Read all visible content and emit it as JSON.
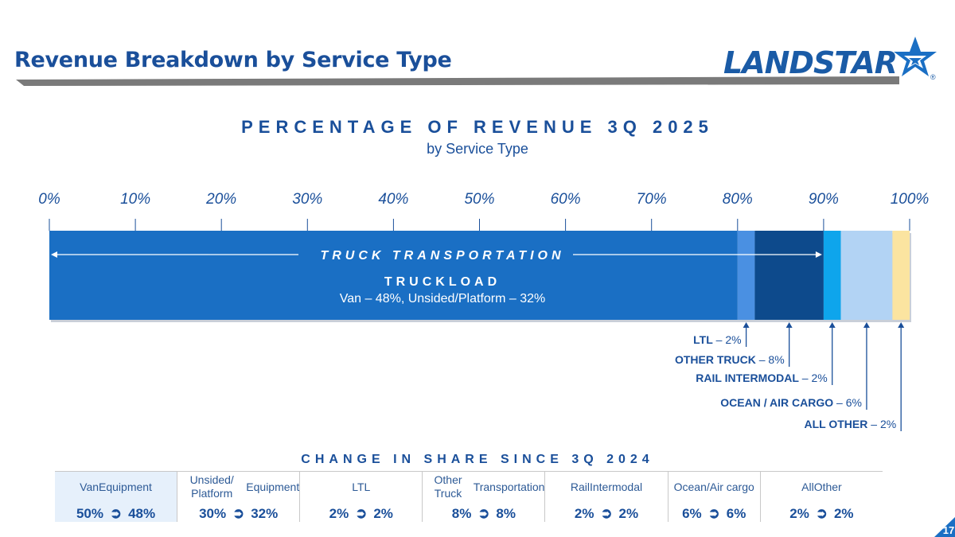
{
  "header": {
    "title": "Revenue Breakdown by Service Type",
    "logo_text": "LANDSTAR",
    "logo_registered": "®"
  },
  "chart_data": {
    "type": "bar",
    "orientation": "horizontal-stacked-100",
    "title": "PERCENTAGE OF REVENUE 3Q 2025",
    "subtitle": "by Service Type",
    "xlim": [
      0,
      100
    ],
    "ticks": [
      "0%",
      "10%",
      "20%",
      "30%",
      "40%",
      "50%",
      "60%",
      "70%",
      "80%",
      "90%",
      "100%"
    ],
    "tick_values": [
      0,
      10,
      20,
      30,
      40,
      50,
      60,
      70,
      80,
      90,
      100
    ],
    "segments": [
      {
        "name": "Truckload",
        "value": 80,
        "color": "#1a6fc4"
      },
      {
        "name": "LTL",
        "value": 2,
        "color": "#4a90e2"
      },
      {
        "name": "Other Truck",
        "value": 8,
        "color": "#0d4a8c"
      },
      {
        "name": "Rail Intermodal",
        "value": 2,
        "color": "#0ea5ec"
      },
      {
        "name": "Ocean / Air Cargo",
        "value": 6,
        "color": "#b2d3f4"
      },
      {
        "name": "All Other",
        "value": 2,
        "color": "#fbe4a0"
      }
    ],
    "span_annotation": {
      "label": "TRUCK TRANSPORTATION",
      "from": 0,
      "to": 90
    },
    "inbar_title": "TRUCKLOAD",
    "inbar_detail": "Van – 48%, Unsided/Platform – 32%",
    "callouts": [
      {
        "name": "LTL",
        "value": " – 2%"
      },
      {
        "name": "OTHER TRUCK",
        "value": " – 8%"
      },
      {
        "name": "RAIL INTERMODAL",
        "value": " – 2%"
      },
      {
        "name": "OCEAN / AIR CARGO",
        "value": " – 6%"
      },
      {
        "name": "ALL OTHER",
        "value": " – 2%"
      }
    ]
  },
  "change": {
    "title": "CHANGE IN SHARE SINCE 3Q 2024",
    "arrow": "➲",
    "columns": [
      {
        "head1": "Van",
        "head2": "Equipment",
        "from": "50%",
        "to": "48%"
      },
      {
        "head1": "Unsided/ Platform",
        "head2": "Equipment",
        "from": "30%",
        "to": "32%"
      },
      {
        "head1": "LTL",
        "head2": "",
        "from": "2%",
        "to": "2%"
      },
      {
        "head1": "Other Truck",
        "head2": "Transportation",
        "from": "8%",
        "to": "8%"
      },
      {
        "head1": "Rail",
        "head2": "Intermodal",
        "from": "2%",
        "to": "2%"
      },
      {
        "head1": "Ocean/",
        "head2": "Air cargo",
        "from": "6%",
        "to": "6%"
      },
      {
        "head1": "All",
        "head2": "Other",
        "from": "2%",
        "to": "2%"
      }
    ]
  },
  "footer": {
    "page_number": "17"
  }
}
